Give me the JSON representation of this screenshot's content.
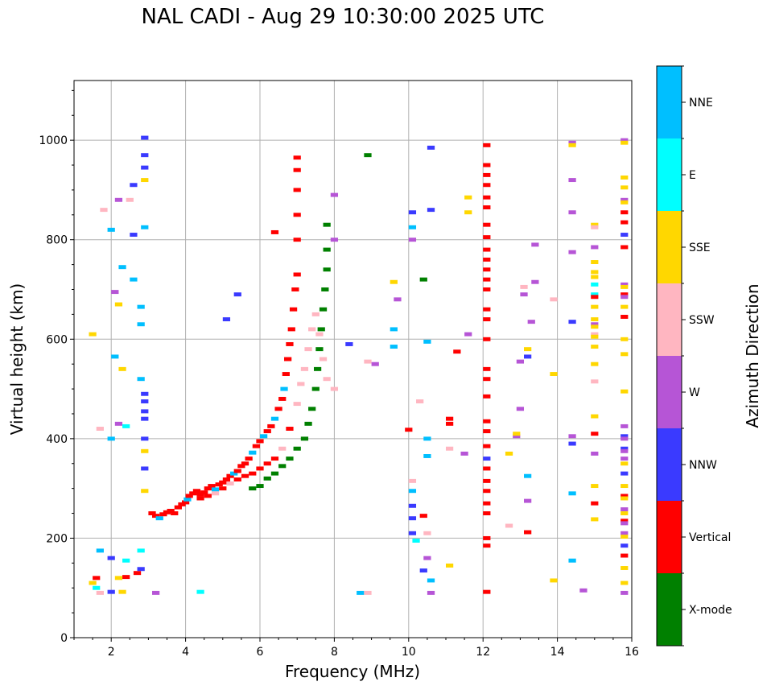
{
  "chart_data": {
    "type": "scatter",
    "title": "NAL CADI - Aug 29 10:30:00 2025 UTC",
    "xlabel": "Frequency (MHz)",
    "ylabel": "Virtual height (km)",
    "xlim": [
      1,
      16
    ],
    "ylim": [
      0,
      1120
    ],
    "xticks": [
      2,
      4,
      6,
      8,
      10,
      12,
      14,
      16
    ],
    "yticks": [
      0,
      200,
      400,
      600,
      800,
      1000
    ],
    "grid": true,
    "colorbar": {
      "label": "Azimuth Direction",
      "placement": "right",
      "categories": [
        {
          "name": "X-mode",
          "color": "#008000"
        },
        {
          "name": "Vertical",
          "color": "#ff0000"
        },
        {
          "name": "NNW",
          "color": "#3a3aff"
        },
        {
          "name": "W",
          "color": "#b655d6"
        },
        {
          "name": "SSW",
          "color": "#ffb6c1"
        },
        {
          "name": "SSE",
          "color": "#ffd700"
        },
        {
          "name": "E",
          "color": "#00ffff"
        },
        {
          "name": "NNE",
          "color": "#00bfff"
        }
      ]
    },
    "points": [
      [
        3.1,
        250,
        "Vertical"
      ],
      [
        3.2,
        245,
        "Vertical"
      ],
      [
        3.3,
        240,
        "NNE"
      ],
      [
        3.4,
        248,
        "Vertical"
      ],
      [
        3.5,
        252,
        "Vertical"
      ],
      [
        3.6,
        255,
        "Vertical"
      ],
      [
        3.7,
        250,
        "Vertical"
      ],
      [
        3.8,
        262,
        "Vertical"
      ],
      [
        3.9,
        268,
        "Vertical"
      ],
      [
        4.0,
        272,
        "Vertical"
      ],
      [
        4.05,
        278,
        "NNE"
      ],
      [
        4.1,
        285,
        "Vertical"
      ],
      [
        4.2,
        290,
        "Vertical"
      ],
      [
        4.3,
        295,
        "Vertical"
      ],
      [
        4.4,
        288,
        "Vertical"
      ],
      [
        4.5,
        292,
        "Vertical"
      ],
      [
        4.6,
        300,
        "Vertical"
      ],
      [
        4.7,
        305,
        "Vertical"
      ],
      [
        4.8,
        298,
        "NNE"
      ],
      [
        4.9,
        308,
        "Vertical"
      ],
      [
        5.0,
        312,
        "Vertical"
      ],
      [
        5.1,
        318,
        "Vertical"
      ],
      [
        5.2,
        325,
        "Vertical"
      ],
      [
        5.3,
        330,
        "NNE"
      ],
      [
        5.4,
        335,
        "Vertical"
      ],
      [
        5.5,
        345,
        "Vertical"
      ],
      [
        5.6,
        350,
        "Vertical"
      ],
      [
        5.7,
        360,
        "Vertical"
      ],
      [
        5.8,
        372,
        "NNE"
      ],
      [
        5.9,
        385,
        "Vertical"
      ],
      [
        6.0,
        395,
        "Vertical"
      ],
      [
        6.1,
        405,
        "NNE"
      ],
      [
        6.2,
        415,
        "Vertical"
      ],
      [
        6.3,
        425,
        "Vertical"
      ],
      [
        6.4,
        440,
        "NNE"
      ],
      [
        6.5,
        460,
        "Vertical"
      ],
      [
        6.6,
        480,
        "Vertical"
      ],
      [
        6.65,
        500,
        "NNE"
      ],
      [
        6.7,
        530,
        "Vertical"
      ],
      [
        6.75,
        560,
        "Vertical"
      ],
      [
        6.8,
        590,
        "Vertical"
      ],
      [
        6.85,
        620,
        "Vertical"
      ],
      [
        6.9,
        660,
        "Vertical"
      ],
      [
        6.95,
        700,
        "Vertical"
      ],
      [
        7.0,
        730,
        "Vertical"
      ],
      [
        7.0,
        800,
        "Vertical"
      ],
      [
        7.0,
        850,
        "Vertical"
      ],
      [
        7.0,
        900,
        "Vertical"
      ],
      [
        7.0,
        940,
        "Vertical"
      ],
      [
        7.0,
        965,
        "Vertical"
      ],
      [
        6.4,
        815,
        "Vertical"
      ],
      [
        4.4,
        280,
        "Vertical"
      ],
      [
        4.6,
        285,
        "Vertical"
      ],
      [
        4.8,
        290,
        "SSW"
      ],
      [
        5.0,
        300,
        "Vertical"
      ],
      [
        5.2,
        310,
        "SSW"
      ],
      [
        5.4,
        318,
        "Vertical"
      ],
      [
        5.6,
        325,
        "Vertical"
      ],
      [
        5.8,
        330,
        "Vertical"
      ],
      [
        6.0,
        340,
        "Vertical"
      ],
      [
        6.2,
        350,
        "Vertical"
      ],
      [
        6.4,
        360,
        "Vertical"
      ],
      [
        6.6,
        380,
        "SSW"
      ],
      [
        6.8,
        420,
        "Vertical"
      ],
      [
        7.0,
        470,
        "SSW"
      ],
      [
        7.1,
        510,
        "SSW"
      ],
      [
        7.2,
        540,
        "SSW"
      ],
      [
        7.3,
        580,
        "SSW"
      ],
      [
        7.4,
        620,
        "SSW"
      ],
      [
        7.5,
        650,
        "SSW"
      ],
      [
        7.6,
        610,
        "SSW"
      ],
      [
        7.7,
        560,
        "SSW"
      ],
      [
        7.8,
        520,
        "SSW"
      ],
      [
        8.0,
        500,
        "SSW"
      ],
      [
        5.8,
        300,
        "X-mode"
      ],
      [
        6.0,
        305,
        "X-mode"
      ],
      [
        6.2,
        320,
        "X-mode"
      ],
      [
        6.4,
        330,
        "X-mode"
      ],
      [
        6.6,
        345,
        "X-mode"
      ],
      [
        6.8,
        360,
        "X-mode"
      ],
      [
        7.0,
        380,
        "X-mode"
      ],
      [
        7.2,
        400,
        "X-mode"
      ],
      [
        7.3,
        430,
        "X-mode"
      ],
      [
        7.4,
        460,
        "X-mode"
      ],
      [
        7.5,
        500,
        "X-mode"
      ],
      [
        7.55,
        540,
        "X-mode"
      ],
      [
        7.6,
        580,
        "X-mode"
      ],
      [
        7.65,
        620,
        "X-mode"
      ],
      [
        7.7,
        660,
        "X-mode"
      ],
      [
        7.75,
        700,
        "X-mode"
      ],
      [
        7.8,
        740,
        "X-mode"
      ],
      [
        7.8,
        780,
        "X-mode"
      ],
      [
        7.8,
        830,
        "X-mode"
      ],
      [
        8.9,
        970,
        "X-mode"
      ],
      [
        10.4,
        720,
        "X-mode"
      ],
      [
        1.5,
        110,
        "SSE"
      ],
      [
        1.6,
        120,
        "Vertical"
      ],
      [
        1.6,
        100,
        "E"
      ],
      [
        1.7,
        90,
        "SSW"
      ],
      [
        2.2,
        120,
        "SSE"
      ],
      [
        2.4,
        122,
        "Vertical"
      ],
      [
        2.7,
        130,
        "Vertical"
      ],
      [
        2.8,
        138,
        "NNW"
      ],
      [
        2.0,
        92,
        "NNW"
      ],
      [
        2.3,
        92,
        "SSE"
      ],
      [
        4.4,
        92,
        "E"
      ],
      [
        3.2,
        90,
        "W"
      ],
      [
        8.7,
        90,
        "NNE"
      ],
      [
        8.9,
        90,
        "SSW"
      ],
      [
        2.9,
        1005,
        "NNW"
      ],
      [
        2.9,
        970,
        "NNW"
      ],
      [
        2.9,
        945,
        "NNW"
      ],
      [
        2.9,
        920,
        "SSE"
      ],
      [
        2.6,
        910,
        "NNW"
      ],
      [
        2.5,
        880,
        "SSW"
      ],
      [
        2.2,
        880,
        "W"
      ],
      [
        1.8,
        860,
        "SSW"
      ],
      [
        2.3,
        745,
        "NNE"
      ],
      [
        2.6,
        810,
        "NNW"
      ],
      [
        2.9,
        825,
        "NNE"
      ],
      [
        2.0,
        820,
        "NNE"
      ],
      [
        2.1,
        695,
        "W"
      ],
      [
        2.2,
        670,
        "SSE"
      ],
      [
        2.8,
        665,
        "NNE"
      ],
      [
        2.8,
        630,
        "NNE"
      ],
      [
        2.6,
        720,
        "NNE"
      ],
      [
        1.5,
        610,
        "SSE"
      ],
      [
        2.1,
        565,
        "NNE"
      ],
      [
        2.3,
        540,
        "SSE"
      ],
      [
        2.8,
        520,
        "NNE"
      ],
      [
        2.9,
        490,
        "NNW"
      ],
      [
        2.9,
        475,
        "NNW"
      ],
      [
        2.9,
        455,
        "NNW"
      ],
      [
        2.9,
        440,
        "NNW"
      ],
      [
        2.9,
        400,
        "NNW"
      ],
      [
        2.9,
        375,
        "SSE"
      ],
      [
        2.9,
        340,
        "NNW"
      ],
      [
        2.9,
        295,
        "SSE"
      ],
      [
        2.2,
        430,
        "W"
      ],
      [
        2.4,
        425,
        "E"
      ],
      [
        1.7,
        420,
        "SSW"
      ],
      [
        2.0,
        400,
        "NNE"
      ],
      [
        2.8,
        175,
        "E"
      ],
      [
        2.0,
        160,
        "NNW"
      ],
      [
        2.4,
        155,
        "E"
      ],
      [
        1.7,
        175,
        "NNE"
      ],
      [
        5.4,
        690,
        "NNW"
      ],
      [
        5.1,
        640,
        "NNW"
      ],
      [
        8.0,
        890,
        "W"
      ],
      [
        8.0,
        800,
        "W"
      ],
      [
        8.4,
        590,
        "NNW"
      ],
      [
        8.9,
        555,
        "SSW"
      ],
      [
        9.1,
        550,
        "W"
      ],
      [
        9.6,
        715,
        "SSE"
      ],
      [
        9.7,
        680,
        "W"
      ],
      [
        9.6,
        620,
        "NNE"
      ],
      [
        9.6,
        585,
        "NNE"
      ],
      [
        10.1,
        855,
        "NNW"
      ],
      [
        10.1,
        825,
        "NNE"
      ],
      [
        10.1,
        800,
        "W"
      ],
      [
        10.6,
        985,
        "NNW"
      ],
      [
        10.6,
        860,
        "NNW"
      ],
      [
        10.5,
        595,
        "NNE"
      ],
      [
        10.3,
        475,
        "SSW"
      ],
      [
        10.0,
        418,
        "Vertical"
      ],
      [
        10.5,
        400,
        "NNE"
      ],
      [
        10.5,
        365,
        "NNE"
      ],
      [
        10.1,
        315,
        "SSW"
      ],
      [
        10.1,
        295,
        "NNE"
      ],
      [
        10.1,
        265,
        "NNW"
      ],
      [
        10.1,
        240,
        "NNW"
      ],
      [
        10.1,
        210,
        "NNW"
      ],
      [
        10.4,
        245,
        "Vertical"
      ],
      [
        10.5,
        210,
        "SSW"
      ],
      [
        10.2,
        195,
        "E"
      ],
      [
        10.5,
        160,
        "W"
      ],
      [
        10.4,
        135,
        "NNW"
      ],
      [
        10.6,
        115,
        "NNE"
      ],
      [
        10.6,
        90,
        "W"
      ],
      [
        11.1,
        440,
        "Vertical"
      ],
      [
        11.1,
        430,
        "Vertical"
      ],
      [
        11.3,
        575,
        "Vertical"
      ],
      [
        11.5,
        370,
        "W"
      ],
      [
        11.1,
        380,
        "SSW"
      ],
      [
        11.6,
        885,
        "SSE"
      ],
      [
        11.6,
        855,
        "SSE"
      ],
      [
        11.6,
        610,
        "W"
      ],
      [
        11.1,
        145,
        "SSE"
      ],
      [
        12.1,
        990,
        "Vertical"
      ],
      [
        12.1,
        950,
        "Vertical"
      ],
      [
        12.1,
        930,
        "Vertical"
      ],
      [
        12.1,
        910,
        "Vertical"
      ],
      [
        12.1,
        885,
        "Vertical"
      ],
      [
        12.1,
        865,
        "Vertical"
      ],
      [
        12.1,
        830,
        "Vertical"
      ],
      [
        12.1,
        805,
        "Vertical"
      ],
      [
        12.1,
        780,
        "Vertical"
      ],
      [
        12.1,
        760,
        "Vertical"
      ],
      [
        12.1,
        740,
        "Vertical"
      ],
      [
        12.1,
        720,
        "Vertical"
      ],
      [
        12.1,
        700,
        "Vertical"
      ],
      [
        12.1,
        660,
        "Vertical"
      ],
      [
        12.1,
        640,
        "Vertical"
      ],
      [
        12.1,
        600,
        "Vertical"
      ],
      [
        12.1,
        540,
        "Vertical"
      ],
      [
        12.1,
        520,
        "Vertical"
      ],
      [
        12.1,
        485,
        "Vertical"
      ],
      [
        12.1,
        435,
        "Vertical"
      ],
      [
        12.1,
        415,
        "Vertical"
      ],
      [
        12.1,
        385,
        "Vertical"
      ],
      [
        12.1,
        360,
        "NNW"
      ],
      [
        12.1,
        340,
        "Vertical"
      ],
      [
        12.1,
        315,
        "Vertical"
      ],
      [
        12.1,
        295,
        "Vertical"
      ],
      [
        12.1,
        270,
        "Vertical"
      ],
      [
        12.1,
        250,
        "Vertical"
      ],
      [
        12.1,
        200,
        "Vertical"
      ],
      [
        12.1,
        185,
        "Vertical"
      ],
      [
        12.1,
        92,
        "Vertical"
      ],
      [
        12.9,
        405,
        "W"
      ],
      [
        12.9,
        410,
        "SSE"
      ],
      [
        12.7,
        370,
        "SSE"
      ],
      [
        12.7,
        225,
        "SSW"
      ],
      [
        13.0,
        555,
        "W"
      ],
      [
        13.1,
        705,
        "SSW"
      ],
      [
        13.1,
        690,
        "W"
      ],
      [
        13.2,
        580,
        "SSE"
      ],
      [
        13.2,
        565,
        "NNW"
      ],
      [
        13.0,
        460,
        "W"
      ],
      [
        13.2,
        325,
        "NNE"
      ],
      [
        13.2,
        275,
        "W"
      ],
      [
        13.2,
        212,
        "Vertical"
      ],
      [
        13.4,
        790,
        "W"
      ],
      [
        13.4,
        715,
        "W"
      ],
      [
        13.3,
        635,
        "W"
      ],
      [
        13.9,
        680,
        "SSW"
      ],
      [
        13.9,
        530,
        "SSE"
      ],
      [
        13.9,
        115,
        "SSE"
      ],
      [
        14.4,
        995,
        "W"
      ],
      [
        14.4,
        990,
        "SSE"
      ],
      [
        14.4,
        920,
        "W"
      ],
      [
        14.4,
        855,
        "W"
      ],
      [
        14.4,
        775,
        "W"
      ],
      [
        14.4,
        635,
        "NNW"
      ],
      [
        14.4,
        405,
        "W"
      ],
      [
        14.4,
        390,
        "NNW"
      ],
      [
        14.4,
        290,
        "NNE"
      ],
      [
        14.4,
        155,
        "NNE"
      ],
      [
        14.7,
        95,
        "W"
      ],
      [
        15.0,
        830,
        "SSE"
      ],
      [
        15.0,
        825,
        "SSW"
      ],
      [
        15.0,
        785,
        "W"
      ],
      [
        15.0,
        755,
        "SSE"
      ],
      [
        15.0,
        735,
        "SSE"
      ],
      [
        15.0,
        725,
        "SSE"
      ],
      [
        15.0,
        710,
        "E"
      ],
      [
        15.0,
        690,
        "E"
      ],
      [
        15.0,
        685,
        "Vertical"
      ],
      [
        15.0,
        665,
        "SSE"
      ],
      [
        15.0,
        640,
        "SSE"
      ],
      [
        15.0,
        630,
        "W"
      ],
      [
        15.0,
        625,
        "SSE"
      ],
      [
        15.0,
        610,
        "SSW"
      ],
      [
        15.0,
        605,
        "SSE"
      ],
      [
        15.0,
        585,
        "SSE"
      ],
      [
        15.0,
        550,
        "SSE"
      ],
      [
        15.0,
        515,
        "SSW"
      ],
      [
        15.0,
        445,
        "SSE"
      ],
      [
        15.0,
        410,
        "Vertical"
      ],
      [
        15.0,
        370,
        "W"
      ],
      [
        15.0,
        305,
        "SSE"
      ],
      [
        15.0,
        270,
        "Vertical"
      ],
      [
        15.0,
        238,
        "SSE"
      ],
      [
        15.8,
        1000,
        "W"
      ],
      [
        15.8,
        995,
        "SSE"
      ],
      [
        15.8,
        925,
        "SSE"
      ],
      [
        15.8,
        905,
        "SSE"
      ],
      [
        15.8,
        880,
        "W"
      ],
      [
        15.8,
        875,
        "SSE"
      ],
      [
        15.8,
        855,
        "Vertical"
      ],
      [
        15.8,
        835,
        "Vertical"
      ],
      [
        15.8,
        810,
        "NNW"
      ],
      [
        15.8,
        785,
        "Vertical"
      ],
      [
        15.8,
        710,
        "W"
      ],
      [
        15.8,
        705,
        "SSE"
      ],
      [
        15.8,
        690,
        "Vertical"
      ],
      [
        15.8,
        685,
        "W"
      ],
      [
        15.8,
        665,
        "SSE"
      ],
      [
        15.8,
        645,
        "Vertical"
      ],
      [
        15.8,
        600,
        "SSE"
      ],
      [
        15.8,
        570,
        "SSE"
      ],
      [
        15.8,
        495,
        "SSE"
      ],
      [
        15.8,
        425,
        "W"
      ],
      [
        15.8,
        405,
        "NNW"
      ],
      [
        15.8,
        400,
        "W"
      ],
      [
        15.8,
        380,
        "NNW"
      ],
      [
        15.8,
        375,
        "W"
      ],
      [
        15.8,
        360,
        "W"
      ],
      [
        15.8,
        350,
        "SSE"
      ],
      [
        15.8,
        330,
        "NNW"
      ],
      [
        15.8,
        305,
        "SSE"
      ],
      [
        15.8,
        285,
        "Vertical"
      ],
      [
        15.8,
        280,
        "SSE"
      ],
      [
        15.8,
        258,
        "W"
      ],
      [
        15.8,
        250,
        "SSE"
      ],
      [
        15.8,
        235,
        "Vertical"
      ],
      [
        15.8,
        230,
        "W"
      ],
      [
        15.8,
        210,
        "W"
      ],
      [
        15.8,
        203,
        "SSE"
      ],
      [
        15.8,
        185,
        "NNW"
      ],
      [
        15.8,
        165,
        "Vertical"
      ],
      [
        15.8,
        140,
        "SSE"
      ],
      [
        15.8,
        110,
        "SSE"
      ],
      [
        15.8,
        90,
        "W"
      ]
    ]
  }
}
